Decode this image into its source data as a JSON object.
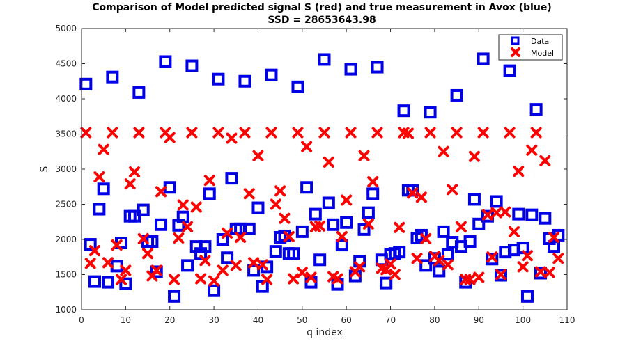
{
  "chart_data": {
    "type": "scatter",
    "title": "Comparison of Model predicted signal S (red) and true measurement in Avox (blue)",
    "subtitle": "SSD = 28653643.98",
    "xlabel": "q index",
    "ylabel": "S",
    "xlim": [
      0,
      110
    ],
    "ylim": [
      1000,
      5000
    ],
    "xticks": [
      "0",
      "10",
      "20",
      "30",
      "40",
      "50",
      "60",
      "70",
      "80",
      "90",
      "100",
      "110"
    ],
    "yticks": [
      "1000",
      "1500",
      "2000",
      "2500",
      "3000",
      "3500",
      "4000",
      "4500",
      "5000"
    ],
    "grid": false,
    "legend_position": "top-right",
    "series": [
      {
        "name": "Data",
        "marker": "square",
        "color": "#0000e6",
        "points": [
          [
            1,
            4210
          ],
          [
            2,
            1930
          ],
          [
            3,
            1400
          ],
          [
            4,
            2430
          ],
          [
            5,
            2720
          ],
          [
            6,
            1390
          ],
          [
            7,
            4310
          ],
          [
            8,
            1620
          ],
          [
            9,
            1950
          ],
          [
            10,
            1370
          ],
          [
            11,
            2330
          ],
          [
            12,
            2330
          ],
          [
            13,
            4090
          ],
          [
            14,
            2420
          ],
          [
            15,
            1970
          ],
          [
            16,
            1970
          ],
          [
            17,
            1540
          ],
          [
            18,
            2210
          ],
          [
            19,
            4530
          ],
          [
            20,
            2740
          ],
          [
            21,
            1190
          ],
          [
            22,
            2200
          ],
          [
            23,
            2320
          ],
          [
            24,
            1630
          ],
          [
            25,
            4470
          ],
          [
            26,
            1900
          ],
          [
            27,
            1800
          ],
          [
            28,
            1900
          ],
          [
            29,
            2650
          ],
          [
            30,
            1270
          ],
          [
            31,
            4280
          ],
          [
            32,
            2000
          ],
          [
            33,
            1740
          ],
          [
            34,
            2870
          ],
          [
            35,
            2150
          ],
          [
            36,
            2150
          ],
          [
            37,
            4250
          ],
          [
            38,
            2150
          ],
          [
            39,
            1560
          ],
          [
            40,
            2450
          ],
          [
            41,
            1330
          ],
          [
            42,
            1610
          ],
          [
            43,
            4340
          ],
          [
            44,
            1830
          ],
          [
            45,
            2030
          ],
          [
            46,
            2050
          ],
          [
            47,
            1800
          ],
          [
            48,
            1800
          ],
          [
            49,
            4170
          ],
          [
            50,
            2110
          ],
          [
            51,
            2740
          ],
          [
            52,
            1390
          ],
          [
            53,
            2360
          ],
          [
            54,
            1710
          ],
          [
            55,
            4560
          ],
          [
            56,
            2520
          ],
          [
            57,
            2210
          ],
          [
            58,
            1360
          ],
          [
            59,
            1920
          ],
          [
            60,
            2240
          ],
          [
            61,
            4420
          ],
          [
            62,
            1480
          ],
          [
            63,
            1690
          ],
          [
            64,
            2140
          ],
          [
            65,
            2380
          ],
          [
            66,
            2650
          ],
          [
            67,
            4450
          ],
          [
            68,
            1710
          ],
          [
            69,
            1380
          ],
          [
            70,
            1790
          ],
          [
            71,
            1800
          ],
          [
            72,
            1820
          ],
          [
            73,
            3830
          ],
          [
            74,
            2700
          ],
          [
            75,
            2700
          ],
          [
            76,
            2020
          ],
          [
            77,
            2060
          ],
          [
            78,
            1630
          ],
          [
            79,
            3810
          ],
          [
            80,
            1730
          ],
          [
            81,
            1550
          ],
          [
            82,
            2110
          ],
          [
            83,
            1790
          ],
          [
            84,
            1960
          ],
          [
            85,
            4050
          ],
          [
            86,
            1900
          ],
          [
            87,
            1390
          ],
          [
            88,
            1970
          ],
          [
            89,
            2570
          ],
          [
            90,
            2220
          ],
          [
            91,
            4570
          ],
          [
            92,
            2330
          ],
          [
            93,
            1720
          ],
          [
            94,
            2540
          ],
          [
            95,
            1490
          ],
          [
            96,
            1820
          ],
          [
            97,
            4400
          ],
          [
            98,
            1850
          ],
          [
            99,
            2360
          ],
          [
            100,
            1880
          ],
          [
            101,
            1190
          ],
          [
            102,
            2350
          ],
          [
            103,
            3850
          ],
          [
            104,
            1520
          ],
          [
            105,
            2300
          ],
          [
            106,
            2010
          ],
          [
            107,
            1900
          ],
          [
            108,
            2060
          ]
        ]
      },
      {
        "name": "Model",
        "marker": "x",
        "color": "#ff0000",
        "points": [
          [
            1,
            3520
          ],
          [
            2,
            1660
          ],
          [
            3,
            1840
          ],
          [
            4,
            2890
          ],
          [
            5,
            3280
          ],
          [
            6,
            1670
          ],
          [
            7,
            3520
          ],
          [
            8,
            1920
          ],
          [
            9,
            1430
          ],
          [
            10,
            1560
          ],
          [
            11,
            2790
          ],
          [
            12,
            2960
          ],
          [
            13,
            3520
          ],
          [
            14,
            2010
          ],
          [
            15,
            1800
          ],
          [
            16,
            1480
          ],
          [
            17,
            1560
          ],
          [
            18,
            2680
          ],
          [
            19,
            3520
          ],
          [
            20,
            3450
          ],
          [
            21,
            1430
          ],
          [
            22,
            2020
          ],
          [
            23,
            2490
          ],
          [
            24,
            2180
          ],
          [
            25,
            3520
          ],
          [
            26,
            2460
          ],
          [
            27,
            1440
          ],
          [
            28,
            1700
          ],
          [
            29,
            2840
          ],
          [
            30,
            1410
          ],
          [
            31,
            3520
          ],
          [
            32,
            1560
          ],
          [
            33,
            2090
          ],
          [
            34,
            3440
          ],
          [
            35,
            1630
          ],
          [
            36,
            2030
          ],
          [
            37,
            3520
          ],
          [
            38,
            2650
          ],
          [
            39,
            1670
          ],
          [
            40,
            3190
          ],
          [
            41,
            1640
          ],
          [
            42,
            1430
          ],
          [
            43,
            3520
          ],
          [
            44,
            2500
          ],
          [
            45,
            2690
          ],
          [
            46,
            2300
          ],
          [
            47,
            2040
          ],
          [
            48,
            1440
          ],
          [
            49,
            3520
          ],
          [
            50,
            1530
          ],
          [
            51,
            3320
          ],
          [
            52,
            1460
          ],
          [
            53,
            2180
          ],
          [
            54,
            2190
          ],
          [
            55,
            3520
          ],
          [
            56,
            3100
          ],
          [
            57,
            1470
          ],
          [
            58,
            1440
          ],
          [
            59,
            2040
          ],
          [
            60,
            2560
          ],
          [
            61,
            3520
          ],
          [
            62,
            1540
          ],
          [
            63,
            1610
          ],
          [
            64,
            3190
          ],
          [
            65,
            2220
          ],
          [
            66,
            2820
          ],
          [
            67,
            3520
          ],
          [
            68,
            1590
          ],
          [
            69,
            1570
          ],
          [
            70,
            1650
          ],
          [
            71,
            1500
          ],
          [
            72,
            2170
          ],
          [
            73,
            3520
          ],
          [
            74,
            3510
          ],
          [
            75,
            2660
          ],
          [
            76,
            1730
          ],
          [
            77,
            2600
          ],
          [
            78,
            2010
          ],
          [
            79,
            3520
          ],
          [
            80,
            1760
          ],
          [
            81,
            1700
          ],
          [
            82,
            3250
          ],
          [
            83,
            1640
          ],
          [
            84,
            2710
          ],
          [
            85,
            3520
          ],
          [
            86,
            2180
          ],
          [
            87,
            1430
          ],
          [
            88,
            1430
          ],
          [
            89,
            3180
          ],
          [
            90,
            1460
          ],
          [
            91,
            3520
          ],
          [
            92,
            2350
          ],
          [
            93,
            1750
          ],
          [
            94,
            2380
          ],
          [
            95,
            1500
          ],
          [
            96,
            2390
          ],
          [
            97,
            3520
          ],
          [
            98,
            2110
          ],
          [
            99,
            2970
          ],
          [
            100,
            1610
          ],
          [
            101,
            1770
          ],
          [
            102,
            3270
          ],
          [
            103,
            3520
          ],
          [
            104,
            1540
          ],
          [
            105,
            3120
          ],
          [
            106,
            1530
          ],
          [
            107,
            2030
          ],
          [
            108,
            1730
          ]
        ]
      }
    ]
  }
}
